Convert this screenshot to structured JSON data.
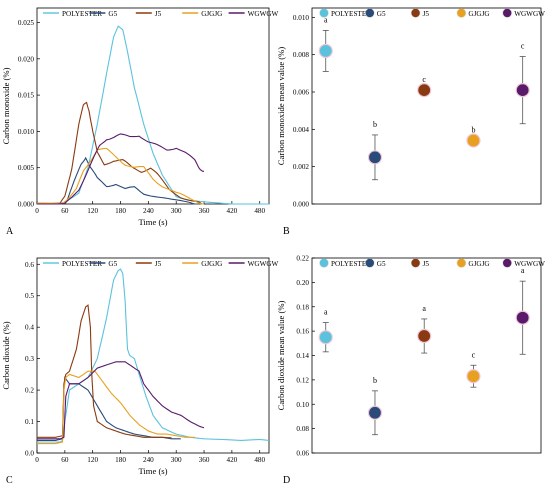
{
  "colors": {
    "POLYESTER": "#5bc2dd",
    "G5": "#2a4a7a",
    "J5": "#8a3a12",
    "GJGJG": "#e8a020",
    "WGWGW": "#5a1a6a"
  },
  "chart_data": [
    {
      "panel": "A",
      "type": "line",
      "xlabel": "Time (s)",
      "ylabel": "Carbon monoxide (%)",
      "xlim": [
        0,
        500
      ],
      "ylim": [
        0,
        0.027
      ],
      "xticks": [
        0,
        60,
        120,
        180,
        240,
        300,
        360,
        420,
        480
      ],
      "yticks": [
        0.0,
        0.005,
        0.01,
        0.015,
        0.02,
        0.025
      ],
      "ytick_labels": [
        "0.000",
        "0.005",
        "0.010",
        "0.015",
        "0.020",
        "0.025"
      ],
      "legend": "top",
      "series": [
        {
          "name": "POLYESTER",
          "x": [
            0,
            30,
            60,
            90,
            110,
            130,
            150,
            165,
            175,
            185,
            195,
            210,
            230,
            250,
            270,
            290,
            300,
            310,
            330,
            360,
            380,
            400,
            420,
            440,
            470,
            500
          ],
          "y": [
            0,
            0,
            0.0002,
            0.0015,
            0.005,
            0.011,
            0.018,
            0.023,
            0.0245,
            0.024,
            0.021,
            0.016,
            0.011,
            0.007,
            0.004,
            0.002,
            0.001,
            0.0008,
            0.0005,
            0.0003,
            0.0002,
            0.0001,
            0,
            0,
            0,
            0
          ]
        },
        {
          "name": "G5",
          "x": [
            0,
            50,
            65,
            80,
            95,
            105,
            115,
            130,
            150,
            170,
            190,
            210,
            230,
            260,
            290,
            330,
            350
          ],
          "y": [
            0,
            0,
            0.0005,
            0.003,
            0.0055,
            0.0065,
            0.005,
            0.0035,
            0.0025,
            0.0028,
            0.002,
            0.0023,
            0.0015,
            0.001,
            0.0005,
            0.0002,
            0
          ],
          "note_noise": true
        },
        {
          "name": "J5",
          "x": [
            0,
            50,
            60,
            75,
            90,
            100,
            107,
            112,
            120,
            130,
            145,
            165,
            185,
            205,
            225,
            245,
            260,
            285,
            310,
            335,
            355
          ],
          "y": [
            0,
            0,
            0.001,
            0.005,
            0.011,
            0.0135,
            0.014,
            0.013,
            0.01,
            0.007,
            0.0055,
            0.006,
            0.006,
            0.005,
            0.0045,
            0.005,
            0.004,
            0.002,
            0.001,
            0.0004,
            0
          ],
          "note_noise": true
        },
        {
          "name": "GJGJG",
          "x": [
            0,
            55,
            70,
            85,
            100,
            115,
            130,
            150,
            170,
            190,
            210,
            230,
            250,
            270,
            300,
            320,
            345,
            360
          ],
          "y": [
            0,
            0.0002,
            0.001,
            0.002,
            0.0045,
            0.006,
            0.0075,
            0.0075,
            0.0065,
            0.0055,
            0.005,
            0.005,
            0.0035,
            0.0025,
            0.0015,
            0.001,
            0.0004,
            0
          ],
          "note_noise": true
        },
        {
          "name": "WGWGW",
          "x": [
            0,
            60,
            75,
            90,
            105,
            120,
            135,
            150,
            165,
            180,
            200,
            220,
            240,
            260,
            280,
            300,
            320,
            340,
            350,
            360
          ],
          "y": [
            0,
            0,
            0.0008,
            0.002,
            0.004,
            0.006,
            0.008,
            0.009,
            0.0092,
            0.0095,
            0.0093,
            0.0095,
            0.0085,
            0.008,
            0.0075,
            0.0078,
            0.007,
            0.006,
            0.005,
            0.0045
          ],
          "note_noise": true
        }
      ]
    },
    {
      "panel": "B",
      "type": "scatter",
      "ylabel": "Carbon monoxide mean value (%)",
      "ylim": [
        0,
        0.0105
      ],
      "yticks": [
        0.0,
        0.002,
        0.004,
        0.006,
        0.008,
        0.01
      ],
      "ytick_labels": [
        "0.000",
        "0.002",
        "0.004",
        "0.006",
        "0.008",
        "0.010"
      ],
      "legend": "top",
      "categories": [
        "POLYESTER",
        "G5",
        "J5",
        "GJGJG",
        "WGWGW"
      ],
      "values": [
        0.0082,
        0.0025,
        0.0061,
        0.0034,
        0.0061
      ],
      "error": [
        0.0011,
        0.0012,
        0,
        0,
        0.0018
      ],
      "letters": [
        "a",
        "b",
        "c",
        "b",
        "c"
      ]
    },
    {
      "panel": "C",
      "type": "line",
      "xlabel": "Time (s)",
      "ylabel": "Carbon dioxide (%)",
      "xlim": [
        0,
        500
      ],
      "ylim": [
        0,
        0.62
      ],
      "xticks": [
        0,
        60,
        120,
        180,
        240,
        300,
        360,
        420,
        480
      ],
      "yticks": [
        0.0,
        0.1,
        0.2,
        0.3,
        0.4,
        0.5,
        0.6
      ],
      "ytick_labels": [
        "0.0",
        "0.1",
        "0.2",
        "0.3",
        "0.4",
        "0.5",
        "0.6"
      ],
      "legend": "top",
      "series": [
        {
          "name": "POLYESTER",
          "x": [
            0,
            30,
            50,
            55,
            60,
            70,
            90,
            110,
            130,
            150,
            165,
            175,
            180,
            185,
            190,
            195,
            200,
            210,
            220,
            235,
            250,
            270,
            300,
            330,
            360,
            400,
            440,
            480,
            500
          ],
          "y": [
            0.035,
            0.035,
            0.035,
            0.04,
            0.1,
            0.2,
            0.22,
            0.24,
            0.3,
            0.43,
            0.55,
            0.58,
            0.585,
            0.57,
            0.48,
            0.33,
            0.31,
            0.3,
            0.25,
            0.18,
            0.12,
            0.08,
            0.06,
            0.05,
            0.045,
            0.043,
            0.04,
            0.043,
            0.04
          ]
        },
        {
          "name": "G5",
          "x": [
            0,
            40,
            55,
            58,
            60,
            70,
            90,
            110,
            130,
            150,
            170,
            190,
            210,
            230,
            250,
            270,
            290,
            310
          ],
          "y": [
            0.04,
            0.04,
            0.045,
            0.2,
            0.24,
            0.22,
            0.22,
            0.2,
            0.15,
            0.1,
            0.08,
            0.07,
            0.06,
            0.055,
            0.05,
            0.05,
            0.045,
            0.045
          ]
        },
        {
          "name": "J5",
          "x": [
            0,
            40,
            55,
            58,
            62,
            70,
            85,
            95,
            105,
            110,
            115,
            118,
            122,
            130,
            150,
            170,
            190,
            210,
            230,
            250,
            270,
            290
          ],
          "y": [
            0.05,
            0.05,
            0.055,
            0.22,
            0.25,
            0.26,
            0.33,
            0.42,
            0.465,
            0.47,
            0.4,
            0.25,
            0.15,
            0.1,
            0.08,
            0.07,
            0.06,
            0.055,
            0.05,
            0.05,
            0.05,
            0.048
          ]
        },
        {
          "name": "GJGJG",
          "x": [
            0,
            40,
            55,
            58,
            62,
            70,
            90,
            110,
            125,
            140,
            160,
            180,
            200,
            220,
            240,
            260,
            280,
            300,
            320,
            340
          ],
          "y": [
            0.03,
            0.03,
            0.035,
            0.2,
            0.24,
            0.25,
            0.24,
            0.26,
            0.26,
            0.23,
            0.19,
            0.16,
            0.12,
            0.09,
            0.07,
            0.06,
            0.06,
            0.055,
            0.05,
            0.05
          ]
        },
        {
          "name": "WGWGW",
          "x": [
            0,
            50,
            58,
            62,
            70,
            90,
            110,
            130,
            150,
            170,
            190,
            200,
            210,
            220,
            230,
            250,
            270,
            290,
            310,
            330,
            350,
            360
          ],
          "y": [
            0.045,
            0.045,
            0.05,
            0.18,
            0.22,
            0.22,
            0.24,
            0.27,
            0.28,
            0.29,
            0.29,
            0.28,
            0.27,
            0.26,
            0.22,
            0.18,
            0.15,
            0.13,
            0.12,
            0.1,
            0.085,
            0.08
          ]
        }
      ]
    },
    {
      "panel": "D",
      "type": "scatter",
      "ylabel": "Carbon dioxide mean value (%)",
      "ylim": [
        0.06,
        0.22
      ],
      "yticks": [
        0.06,
        0.08,
        0.1,
        0.12,
        0.14,
        0.16,
        0.18,
        0.2,
        0.22
      ],
      "ytick_labels": [
        "0.06",
        "0.08",
        "0.10",
        "0.12",
        "0.14",
        "0.16",
        "0.18",
        "0.20",
        "0.22"
      ],
      "legend": "top",
      "categories": [
        "POLYESTER",
        "G5",
        "J5",
        "GJGJG",
        "WGWGW"
      ],
      "values": [
        0.155,
        0.093,
        0.156,
        0.123,
        0.171
      ],
      "error": [
        0.012,
        0.018,
        0.014,
        0.009,
        0.03
      ],
      "letters": [
        "a",
        "b",
        "a",
        "c",
        "a"
      ]
    }
  ]
}
